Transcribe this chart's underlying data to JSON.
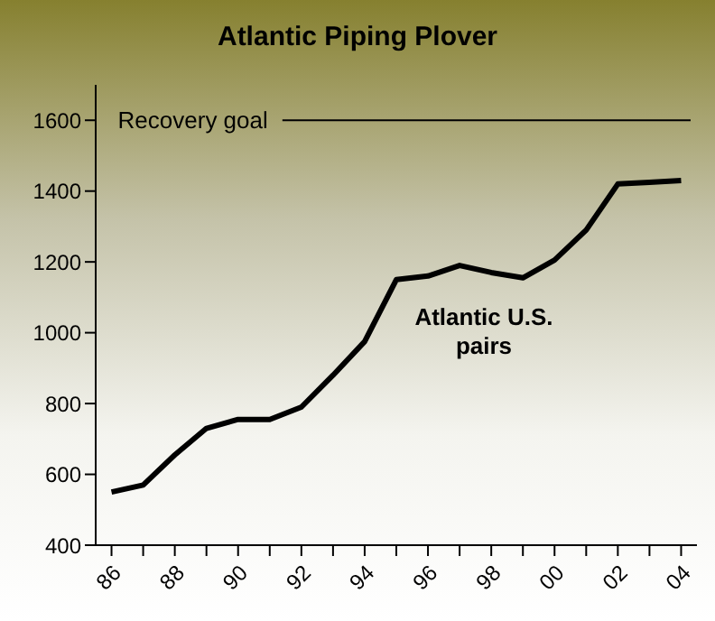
{
  "chart_data": {
    "type": "line",
    "title": "Atlantic Piping Plover",
    "categories": [
      "86",
      null,
      "88",
      null,
      "90",
      null,
      "92",
      null,
      "94",
      null,
      "96",
      null,
      "98",
      null,
      "00",
      null,
      "02",
      null,
      "04"
    ],
    "series": [
      {
        "name": "Atlantic U.S. pairs",
        "color": "#000000",
        "values": [
          550,
          570,
          655,
          730,
          755,
          755,
          790,
          880,
          975,
          1150,
          1160,
          1190,
          1170,
          1155,
          1205,
          1290,
          1420,
          1425,
          1430
        ]
      }
    ],
    "ylim": [
      400,
      1700
    ],
    "yticks": [
      400,
      600,
      800,
      1000,
      1200,
      1400,
      1600
    ],
    "ref_lines": [
      {
        "axis": "y",
        "value": 1600,
        "label": "Recovery goal",
        "color": "#000000"
      }
    ],
    "grid": false
  }
}
